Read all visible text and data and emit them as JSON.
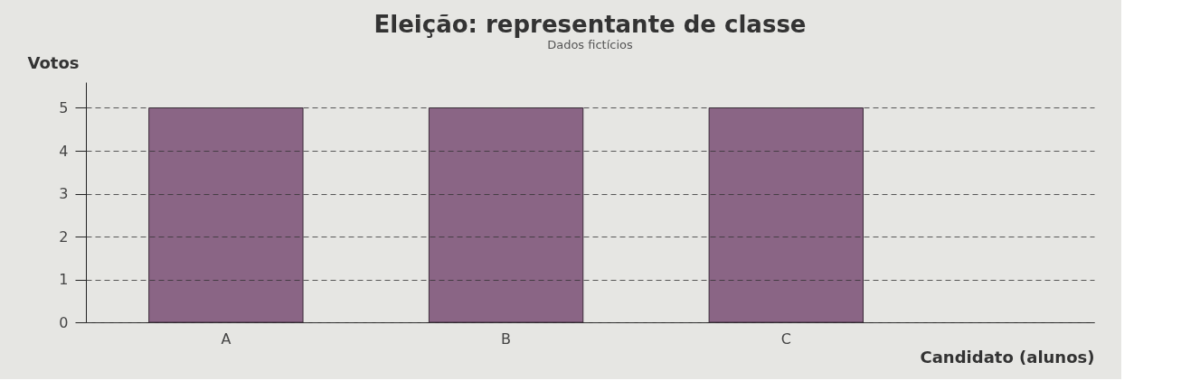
{
  "chart_data": {
    "type": "bar",
    "title": "Eleição: representante de classe",
    "xlabel": "Candidato (alunos)",
    "ylabel": "Votos",
    "categories": [
      "A",
      "B",
      "C"
    ],
    "values": [
      5,
      5,
      5
    ],
    "color": "#8a6585",
    "ylim": [
      0,
      5.6
    ],
    "yticks": [
      0,
      1,
      2,
      3,
      4,
      5
    ],
    "grid": "y",
    "annotations": [
      "Dados fictícios"
    ]
  }
}
